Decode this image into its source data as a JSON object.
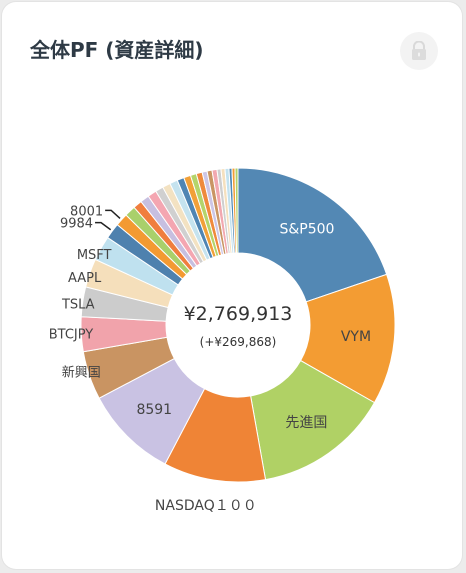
{
  "card": {
    "title": "全体PF (資産詳細)",
    "lock_icon": "lock-icon"
  },
  "colors": {
    "background": "#ececec",
    "card": "#ffffff",
    "title_text": "#2e3a45",
    "center_text": "#333333",
    "label_text": "#444444"
  },
  "chart_data": {
    "type": "pie",
    "donut": true,
    "center_value": "¥2,769,913",
    "center_change": "(+¥269,868)",
    "slices": [
      {
        "label": "S&P500",
        "value": 19.4,
        "color": "#5388b4",
        "label_color": "#ffffff"
      },
      {
        "label": "VYM",
        "value": 13.2,
        "color": "#f39c33",
        "label_color": "#444444"
      },
      {
        "label": "先進国",
        "value": 13.7,
        "color": "#b0d165",
        "label_color": "#444444"
      },
      {
        "label": "NASDAQ１００",
        "value": 10.3,
        "color": "#ef8436",
        "label_color": "#444444"
      },
      {
        "label": "8591",
        "value": 9.4,
        "color": "#c9c2e3",
        "label_color": "#444444"
      },
      {
        "label": "新興国",
        "value": 4.9,
        "color": "#c99462",
        "label_color": "#444444"
      },
      {
        "label": "BTCJPY",
        "value": 3.5,
        "color": "#f1a3ab",
        "label_color": "#444444"
      },
      {
        "label": "TSLA",
        "value": 3.0,
        "color": "#cccccc",
        "label_color": "#444444"
      },
      {
        "label": "AAPL",
        "value": 2.9,
        "color": "#f5dfbb",
        "label_color": "#444444"
      },
      {
        "label": "MSFT",
        "value": 2.5,
        "color": "#bfe1ef",
        "label_color": "#444444"
      },
      {
        "label": "9984",
        "value": 1.6,
        "color": "#4e81ae",
        "label_color": "#444444"
      },
      {
        "label": "8001",
        "value": 1.3,
        "color": "#f39a32",
        "label_color": "#444444"
      },
      {
        "label": "",
        "value": 1.1,
        "color": "#a9d06b",
        "label_color": "#444444"
      },
      {
        "label": "",
        "value": 0.9,
        "color": "#f07e3e",
        "label_color": "#444444"
      },
      {
        "label": "",
        "value": 0.9,
        "color": "#c7bfe0",
        "label_color": "#444444"
      },
      {
        "label": "",
        "value": 0.9,
        "color": "#f4a6b1",
        "label_color": "#444444"
      },
      {
        "label": "",
        "value": 0.8,
        "color": "#d0d0d0",
        "label_color": "#444444"
      },
      {
        "label": "",
        "value": 0.8,
        "color": "#f3e2c2",
        "label_color": "#444444"
      },
      {
        "label": "",
        "value": 0.8,
        "color": "#c5e3ef",
        "label_color": "#444444"
      },
      {
        "label": "",
        "value": 0.7,
        "color": "#4f85b3",
        "label_color": "#444444"
      },
      {
        "label": "",
        "value": 0.7,
        "color": "#f1a038",
        "label_color": "#444444"
      },
      {
        "label": "",
        "value": 0.6,
        "color": "#b4d46b",
        "label_color": "#444444"
      },
      {
        "label": "",
        "value": 0.6,
        "color": "#ef8a3c",
        "label_color": "#444444"
      },
      {
        "label": "",
        "value": 0.5,
        "color": "#cdc6e6",
        "label_color": "#444444"
      },
      {
        "label": "",
        "value": 0.5,
        "color": "#c99564",
        "label_color": "#444444"
      },
      {
        "label": "",
        "value": 0.5,
        "color": "#f2a8b0",
        "label_color": "#444444"
      },
      {
        "label": "",
        "value": 0.4,
        "color": "#cfcfcf",
        "label_color": "#444444"
      },
      {
        "label": "",
        "value": 0.4,
        "color": "#f5e0be",
        "label_color": "#444444"
      },
      {
        "label": "",
        "value": 0.4,
        "color": "#c3e2ef",
        "label_color": "#444444"
      },
      {
        "label": "",
        "value": 0.3,
        "color": "#5088b5",
        "label_color": "#444444"
      },
      {
        "label": "",
        "value": 0.3,
        "color": "#f39d36",
        "label_color": "#444444"
      },
      {
        "label": "",
        "value": 0.3,
        "color": "#b2d26a",
        "label_color": "#444444"
      }
    ]
  }
}
